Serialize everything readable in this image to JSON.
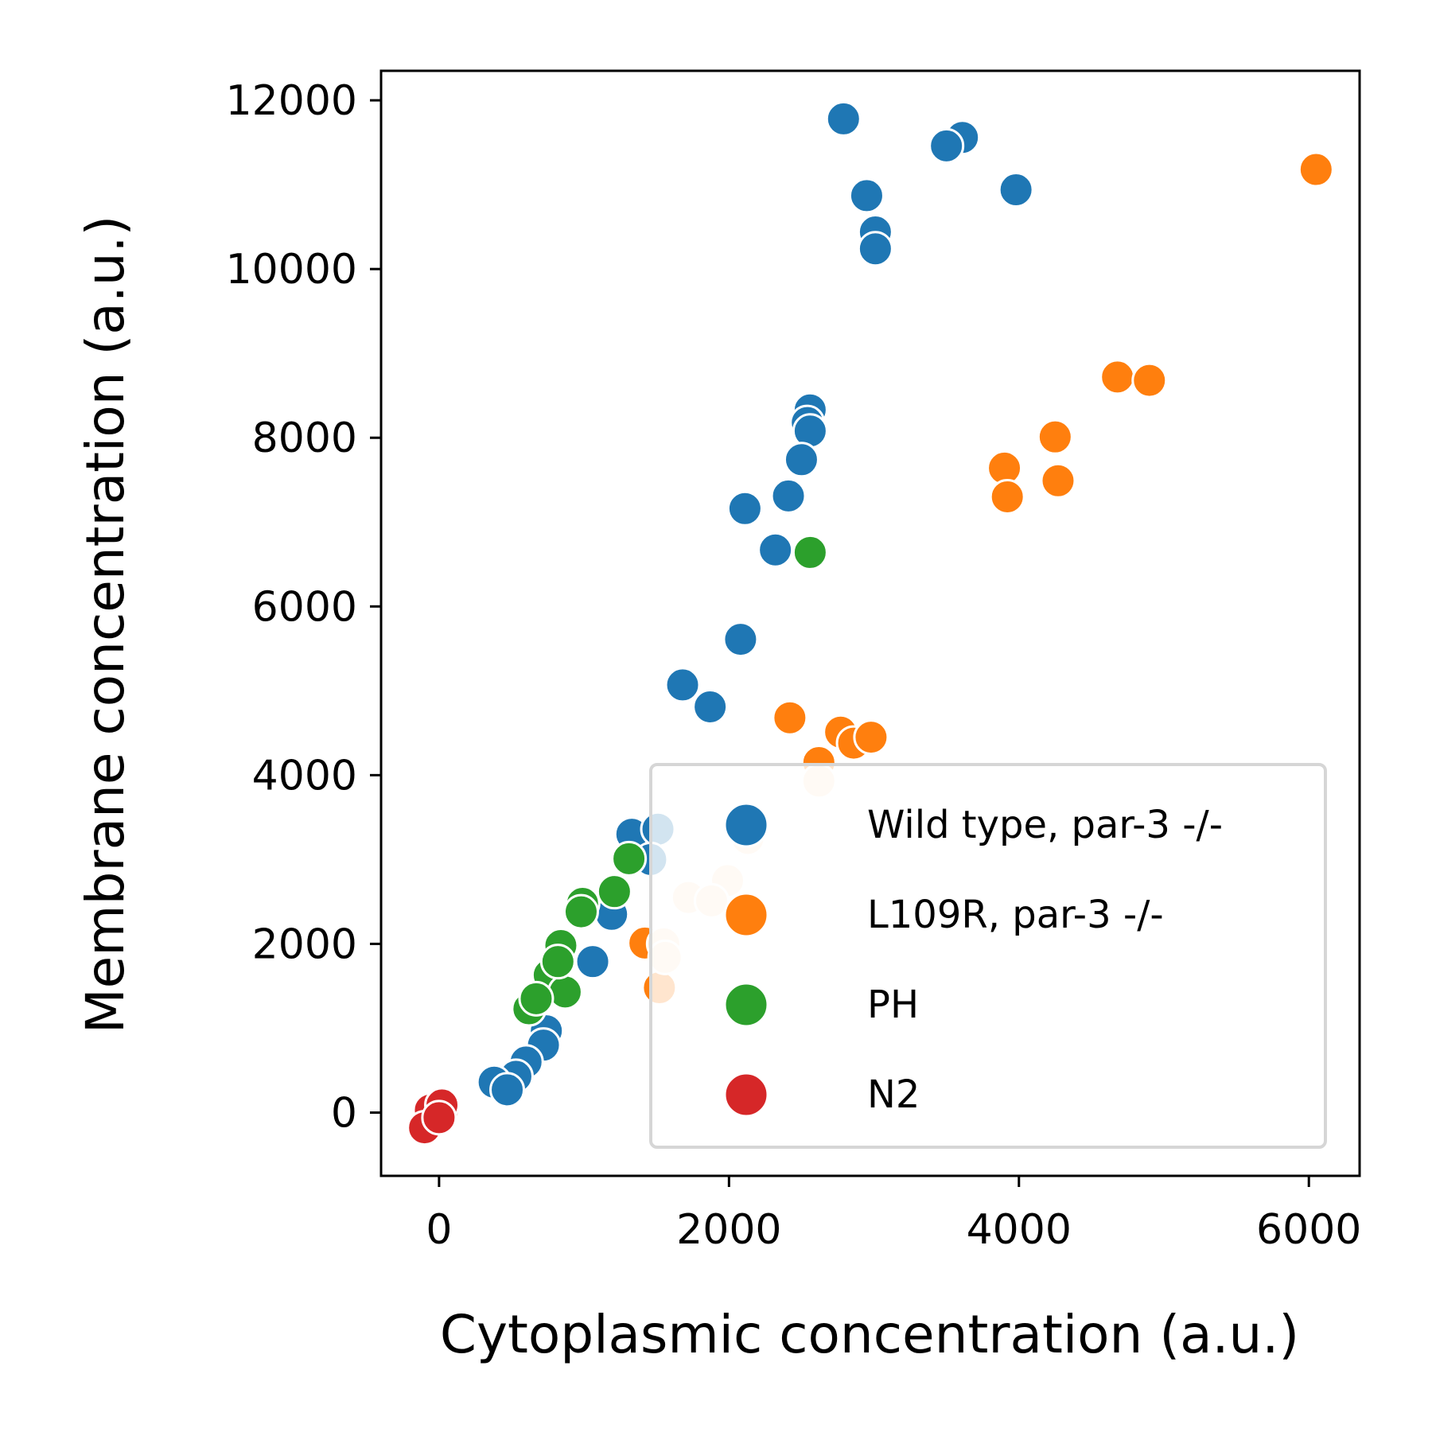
{
  "chart_data": {
    "type": "scatter",
    "title": "",
    "xlabel": "Cytoplasmic concentration (a.u.)",
    "ylabel": "Membrane concentration (a.u.)",
    "xlim": [
      -400,
      6350
    ],
    "ylim": [
      -750,
      12350
    ],
    "xticks": [
      0,
      2000,
      4000,
      6000
    ],
    "xtick_labels": [
      "0",
      "2000",
      "4000",
      "6000"
    ],
    "yticks": [
      0,
      2000,
      4000,
      6000,
      8000,
      10000,
      12000
    ],
    "ytick_labels": [
      "0",
      "2000",
      "4000",
      "6000",
      "8000",
      "10000",
      "12000"
    ],
    "grid": false,
    "legend_position": "lower-right",
    "series": [
      {
        "name": "Wild type, par-3 -/-",
        "color": "#1f77b4",
        "points": [
          [
            2790,
            11780
          ],
          [
            3610,
            11560
          ],
          [
            3500,
            11460
          ],
          [
            3980,
            10940
          ],
          [
            2950,
            10870
          ],
          [
            3010,
            10440
          ],
          [
            3010,
            10240
          ],
          [
            2560,
            8330
          ],
          [
            2540,
            8180
          ],
          [
            2560,
            8080
          ],
          [
            2500,
            7740
          ],
          [
            2410,
            7310
          ],
          [
            2110,
            7160
          ],
          [
            2320,
            6670
          ],
          [
            2080,
            5610
          ],
          [
            1680,
            5070
          ],
          [
            1870,
            4810
          ],
          [
            1330,
            3300
          ],
          [
            1510,
            3360
          ],
          [
            1460,
            3000
          ],
          [
            1190,
            2350
          ],
          [
            1060,
            1790
          ],
          [
            740,
            970
          ],
          [
            720,
            800
          ],
          [
            600,
            600
          ],
          [
            530,
            430
          ],
          [
            380,
            360
          ],
          [
            470,
            270
          ]
        ]
      },
      {
        "name": "L109R, par-3 -/-",
        "color": "#ff7f0e",
        "points": [
          [
            6050,
            11180
          ],
          [
            4680,
            8720
          ],
          [
            4900,
            8680
          ],
          [
            4250,
            8010
          ],
          [
            3900,
            7640
          ],
          [
            4270,
            7490
          ],
          [
            3920,
            7300
          ],
          [
            2420,
            4680
          ],
          [
            2770,
            4510
          ],
          [
            2860,
            4380
          ],
          [
            2980,
            4450
          ],
          [
            2620,
            4150
          ],
          [
            1420,
            2010
          ],
          [
            1520,
            1480
          ]
        ]
      },
      {
        "name": "L109R, par-3 -/-",
        "color": "#fde3cd",
        "points": [
          [
            2620,
            3930
          ],
          [
            2130,
            3250
          ],
          [
            1990,
            2750
          ],
          [
            1720,
            2550
          ],
          [
            1880,
            2510
          ],
          [
            1550,
            2000
          ],
          [
            1560,
            1840
          ]
        ]
      },
      {
        "name": "PH",
        "color": "#2ca02c",
        "points": [
          [
            2560,
            6640
          ],
          [
            1310,
            3010
          ],
          [
            1210,
            2620
          ],
          [
            990,
            2480
          ],
          [
            980,
            2380
          ],
          [
            840,
            1980
          ],
          [
            760,
            1630
          ],
          [
            870,
            1430
          ],
          [
            820,
            1790
          ],
          [
            620,
            1230
          ],
          [
            670,
            1350
          ]
        ]
      },
      {
        "name": "N2",
        "color": "#d62728",
        "points": [
          [
            30,
            60
          ],
          [
            0,
            40
          ],
          [
            -60,
            30
          ],
          [
            -100,
            -180
          ],
          [
            20,
            90
          ],
          [
            0,
            -60
          ]
        ]
      }
    ],
    "legend": [
      {
        "label": "Wild type, par-3 -/-",
        "color": "#1f77b4"
      },
      {
        "label": "L109R, par-3 -/-",
        "color": "#ff7f0e"
      },
      {
        "label": "PH",
        "color": "#2ca02c"
      },
      {
        "label": "N2",
        "color": "#d62728"
      }
    ]
  }
}
